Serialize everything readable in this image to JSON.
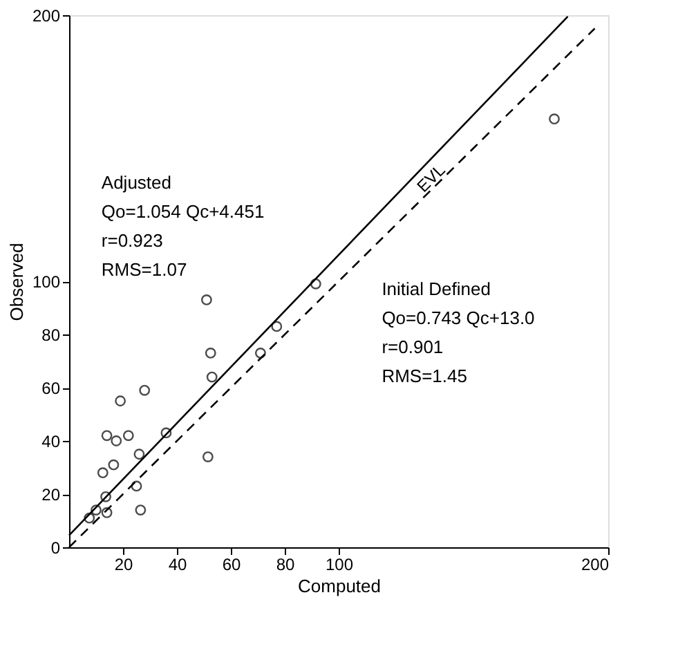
{
  "chart_data": {
    "type": "scatter",
    "xlabel": "Computed",
    "ylabel": "Observed",
    "xlim": [
      0,
      200
    ],
    "ylim": [
      0,
      200
    ],
    "xticks": [
      20,
      40,
      60,
      80,
      100,
      200
    ],
    "yticks": [
      0,
      20,
      40,
      60,
      80,
      100,
      200
    ],
    "grid": false,
    "annotations": [
      "Adjusted\nQo=1.054 Qc+4.451\nr=0.923\nRMS=1.07",
      "Initial  Defined\nQo=0.743 Qc+13.0\nr=0.901\nRMS=1.45"
    ],
    "series": [
      {
        "marker": "circle",
        "color": "#000000",
        "x": [
          7.5,
          10,
          14,
          13.6,
          12.5,
          16.5,
          14,
          17.5,
          22,
          19,
          28,
          26,
          25,
          26.5,
          36,
          51,
          52.5,
          53,
          51.5,
          71,
          77,
          91.5,
          180
        ],
        "values": [
          11,
          14,
          13,
          19,
          28,
          31,
          42,
          40,
          42,
          55,
          59,
          35,
          23,
          14,
          43,
          93,
          73,
          64,
          34,
          73,
          83,
          99,
          161
        ]
      },
      {
        "type": "line",
        "line_style": "solid",
        "color": "#000000",
        "x": [
          0,
          185
        ],
        "values": [
          4.5,
          199.5
        ]
      },
      {
        "type": "line",
        "line_style": "dashed",
        "name": "EVL",
        "color": "#000000",
        "x": [
          0,
          195
        ],
        "values": [
          0,
          195
        ]
      }
    ]
  }
}
